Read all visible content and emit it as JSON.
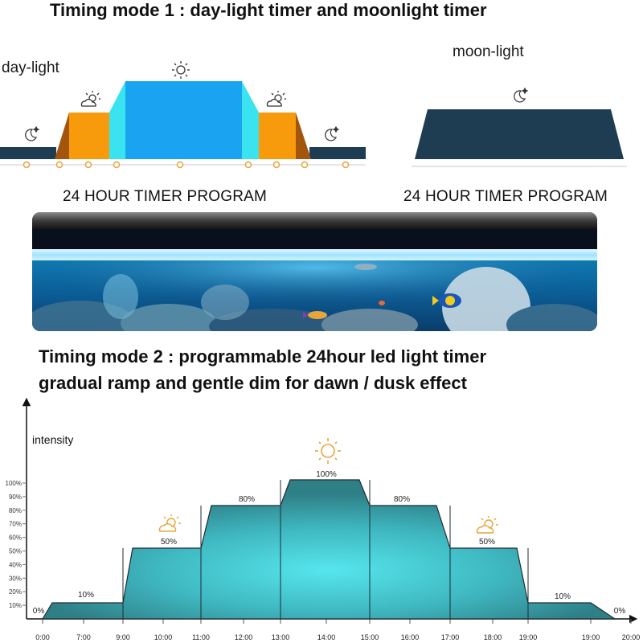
{
  "mode1": {
    "title": "Timing mode 1 : day-light timer and moonlight timer",
    "daylight_label": "day-light",
    "moonlight_label": "moon-light",
    "program_label_left": "24 HOUR TIMER PROGRAM",
    "program_label_right": "24 HOUR TIMER PROGRAM"
  },
  "mode2": {
    "title_line1": "Timing mode 2 : programmable 24hour led light timer",
    "title_line2": "gradual ramp and gentle dim for dawn / dusk effect"
  },
  "chart_data": {
    "type": "area",
    "ylabel": "intensity",
    "y_ticks": [
      "10%",
      "20%",
      "30%",
      "40%",
      "50%",
      "60%",
      "70%",
      "80%",
      "90%",
      "100%"
    ],
    "x_ticks": [
      "0:00",
      "7:00",
      "9:00",
      "10:00",
      "11:00",
      "12:00",
      "13:00",
      "14:00",
      "15:00",
      "16:00",
      "17:00",
      "18:00",
      "19:00",
      "19:00",
      "20:00"
    ],
    "steps": [
      {
        "label": "0%",
        "value": 0
      },
      {
        "label": "10%",
        "value": 10
      },
      {
        "label": "50%",
        "value": 50
      },
      {
        "label": "80%",
        "value": 80
      },
      {
        "label": "100%",
        "value": 100
      },
      {
        "label": "80%",
        "value": 80
      },
      {
        "label": "50%",
        "value": 50
      },
      {
        "label": "10%",
        "value": 10
      },
      {
        "label": "0%",
        "value": 0
      }
    ],
    "colors": {
      "area": "#2f7f87",
      "glow": "#56e6ee",
      "frame": "#1e2c33"
    }
  },
  "icons": {
    "sun": "sun-icon",
    "cloud_sun": "cloud-sun-icon",
    "moon": "moon-star-icon"
  },
  "colors": {
    "daylight_blue": "#1aa3f0",
    "daylight_cyan": "#3ae3f0",
    "dawn_orange": "#f79a0c",
    "dawn_shadow": "#a3550d",
    "night_navy": "#1e3c52",
    "timeline_dot": "#e8a33b"
  }
}
